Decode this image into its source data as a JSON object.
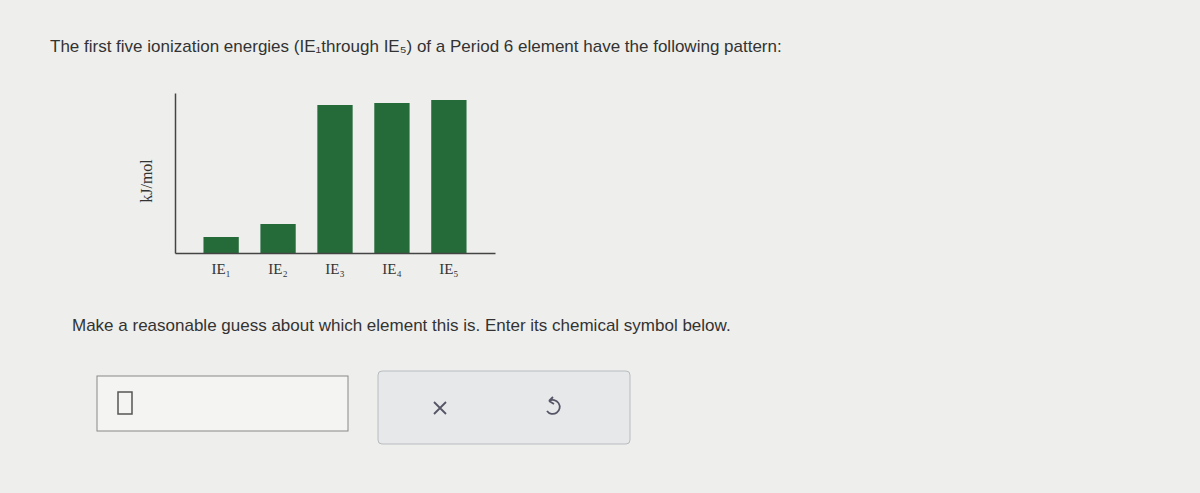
{
  "chart_data": {
    "type": "bar",
    "title": "The first five ionization energies (IE₁through IE₅) of a Period 6 element have the following pattern:",
    "ylabel": "kJ/mol",
    "categories": [
      "IE₁",
      "IE₂",
      "IE₃",
      "IE₄",
      "IE₅"
    ],
    "values": [
      16,
      29,
      148,
      150,
      153
    ],
    "color": "#256b3a",
    "ylim": [
      0,
      160
    ],
    "tick_labels": "x",
    "grid": false
  },
  "question": {
    "prompt": "Make a reasonable guess about which element this is. Enter its chemical symbol below."
  }
}
